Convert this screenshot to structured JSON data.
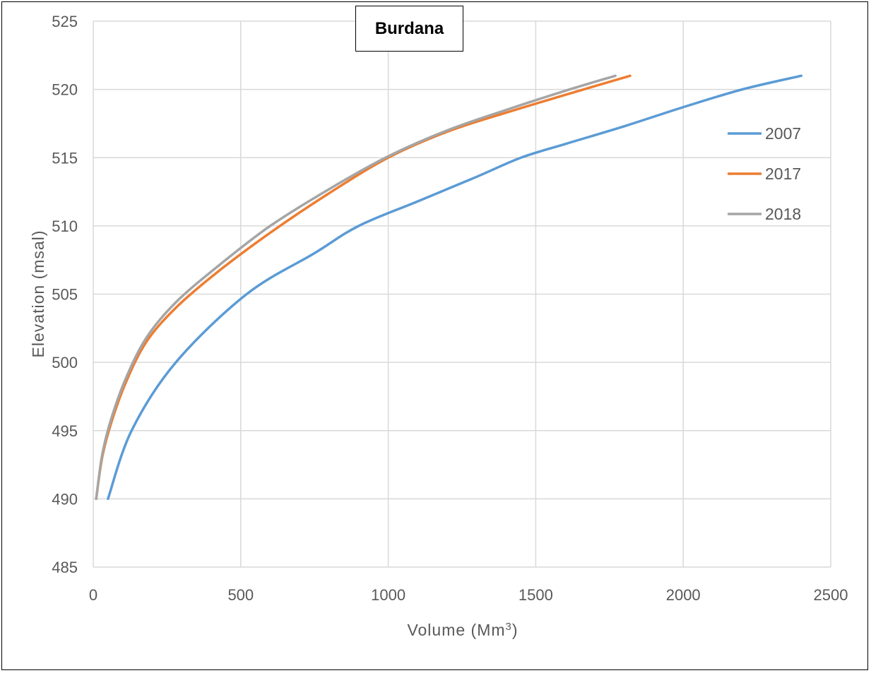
{
  "chart_data": {
    "type": "line",
    "title": "Burdana",
    "xlabel": "Volume (Mm",
    "xlabel_sup": "3",
    "xlabel_end": ")",
    "ylabel": "Elevation (msal)",
    "xlim": [
      0,
      2500
    ],
    "ylim": [
      485,
      525
    ],
    "xticks": [
      0,
      500,
      1000,
      1500,
      2000,
      2500
    ],
    "yticks": [
      485,
      490,
      495,
      500,
      505,
      510,
      515,
      520,
      525
    ],
    "grid": true,
    "legend_position": "right",
    "series": [
      {
        "name": "2007",
        "color": "#5b9bd5",
        "x": [
          50,
          130,
          280,
          520,
          750,
          900,
          1100,
          1300,
          1450,
          1600,
          1800,
          2000,
          2200,
          2400
        ],
        "y": [
          490,
          495,
          500,
          505,
          508,
          510,
          511.8,
          513.6,
          515,
          516,
          517.3,
          518.7,
          520,
          521
        ]
      },
      {
        "name": "2017",
        "color": "#ed7d31",
        "x": [
          10,
          30,
          60,
          110,
          180,
          280,
          420,
          600,
          800,
          1000,
          1200,
          1400,
          1600,
          1820
        ],
        "y": [
          490,
          493,
          495.5,
          498.5,
          501.5,
          504,
          506.6,
          509.5,
          512.4,
          515,
          516.9,
          518.3,
          519.6,
          521
        ]
      },
      {
        "name": "2018",
        "color": "#a5a5a5",
        "x": [
          10,
          30,
          60,
          110,
          180,
          280,
          420,
          600,
          800,
          1000,
          1200,
          1400,
          1600,
          1770
        ],
        "y": [
          490,
          493.2,
          495.8,
          498.8,
          501.8,
          504.4,
          507,
          510,
          512.7,
          515.1,
          517,
          518.5,
          519.9,
          521
        ]
      }
    ]
  }
}
